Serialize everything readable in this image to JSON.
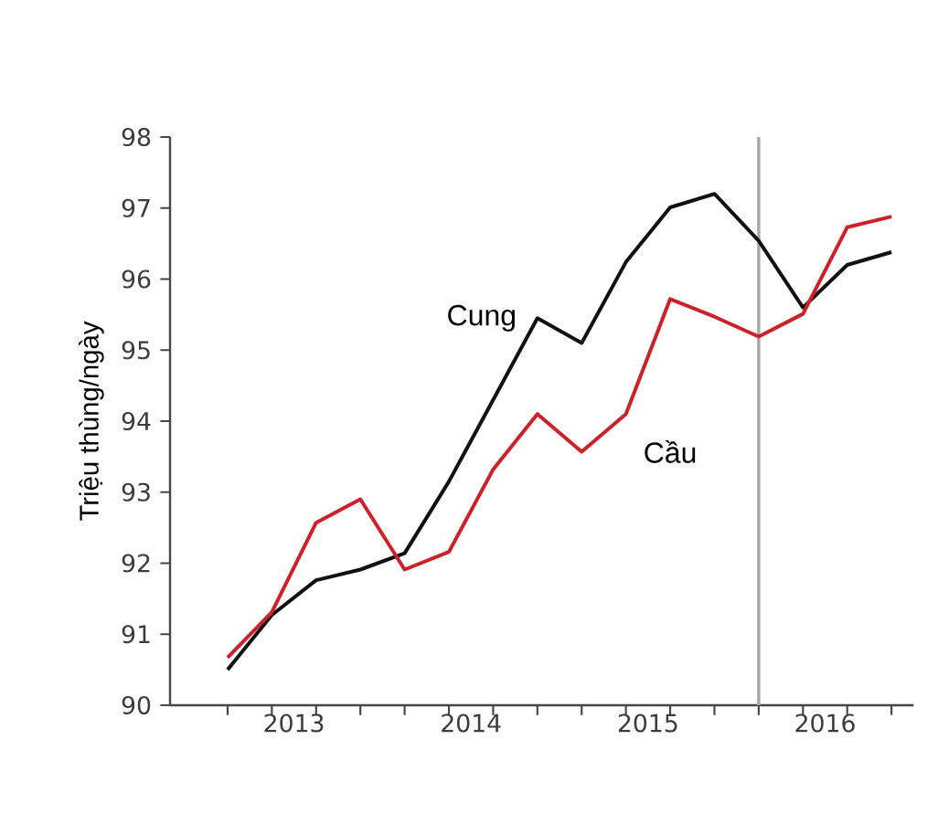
{
  "chart_data": {
    "type": "line",
    "ylabel": "Triệu thùng/ngày",
    "x": [
      2013.125,
      2013.375,
      2013.625,
      2013.875,
      2014.125,
      2014.375,
      2014.625,
      2014.875,
      2015.125,
      2015.375,
      2015.625,
      2015.875,
      2016.125,
      2016.375,
      2016.625,
      2016.875
    ],
    "series": [
      {
        "name": "Cung",
        "color": "#111111",
        "values": [
          90.5,
          91.27,
          91.76,
          91.91,
          92.14,
          93.15,
          94.3,
          95.45,
          95.1,
          96.24,
          97.01,
          97.2,
          96.54,
          95.6,
          96.2,
          96.38
        ]
      },
      {
        "name": "Cầu",
        "color": "#d02027",
        "values": [
          90.67,
          91.31,
          92.57,
          92.9,
          91.91,
          92.16,
          93.32,
          94.1,
          93.57,
          94.1,
          95.72,
          95.47,
          95.19,
          95.51,
          96.73,
          96.88
        ]
      }
    ],
    "xlim": [
      2012.8,
      2017.0
    ],
    "ylim": [
      90,
      98
    ],
    "xticks": [
      {
        "value": 2013.125,
        "label": null
      },
      {
        "value": 2013.375,
        "label": null
      },
      {
        "value": 2013.625,
        "label": null
      },
      {
        "value": 2013.875,
        "label": null
      },
      {
        "value": 2014.125,
        "label": null
      },
      {
        "value": 2014.375,
        "label": null
      },
      {
        "value": 2014.625,
        "label": null
      },
      {
        "value": 2014.875,
        "label": null
      },
      {
        "value": 2015.125,
        "label": null
      },
      {
        "value": 2015.375,
        "label": null
      },
      {
        "value": 2015.625,
        "label": null
      },
      {
        "value": 2015.875,
        "label": null
      },
      {
        "value": 2016.125,
        "label": null
      },
      {
        "value": 2016.375,
        "label": null
      },
      {
        "value": 2016.625,
        "label": null
      },
      {
        "value": 2016.875,
        "label": null
      },
      {
        "value": 2013.5,
        "label": "2013"
      },
      {
        "value": 2014.5,
        "label": "2014"
      },
      {
        "value": 2015.5,
        "label": "2015"
      },
      {
        "value": 2016.5,
        "label": "2016"
      }
    ],
    "yticks": [
      90,
      91,
      92,
      93,
      94,
      95,
      96,
      97,
      98
    ],
    "ref_lines": [
      {
        "axis": "x",
        "value": 2016.125,
        "color": "#a8a8a8"
      }
    ],
    "grid": false,
    "legend": false,
    "marker": "none",
    "line_style": "solid"
  }
}
